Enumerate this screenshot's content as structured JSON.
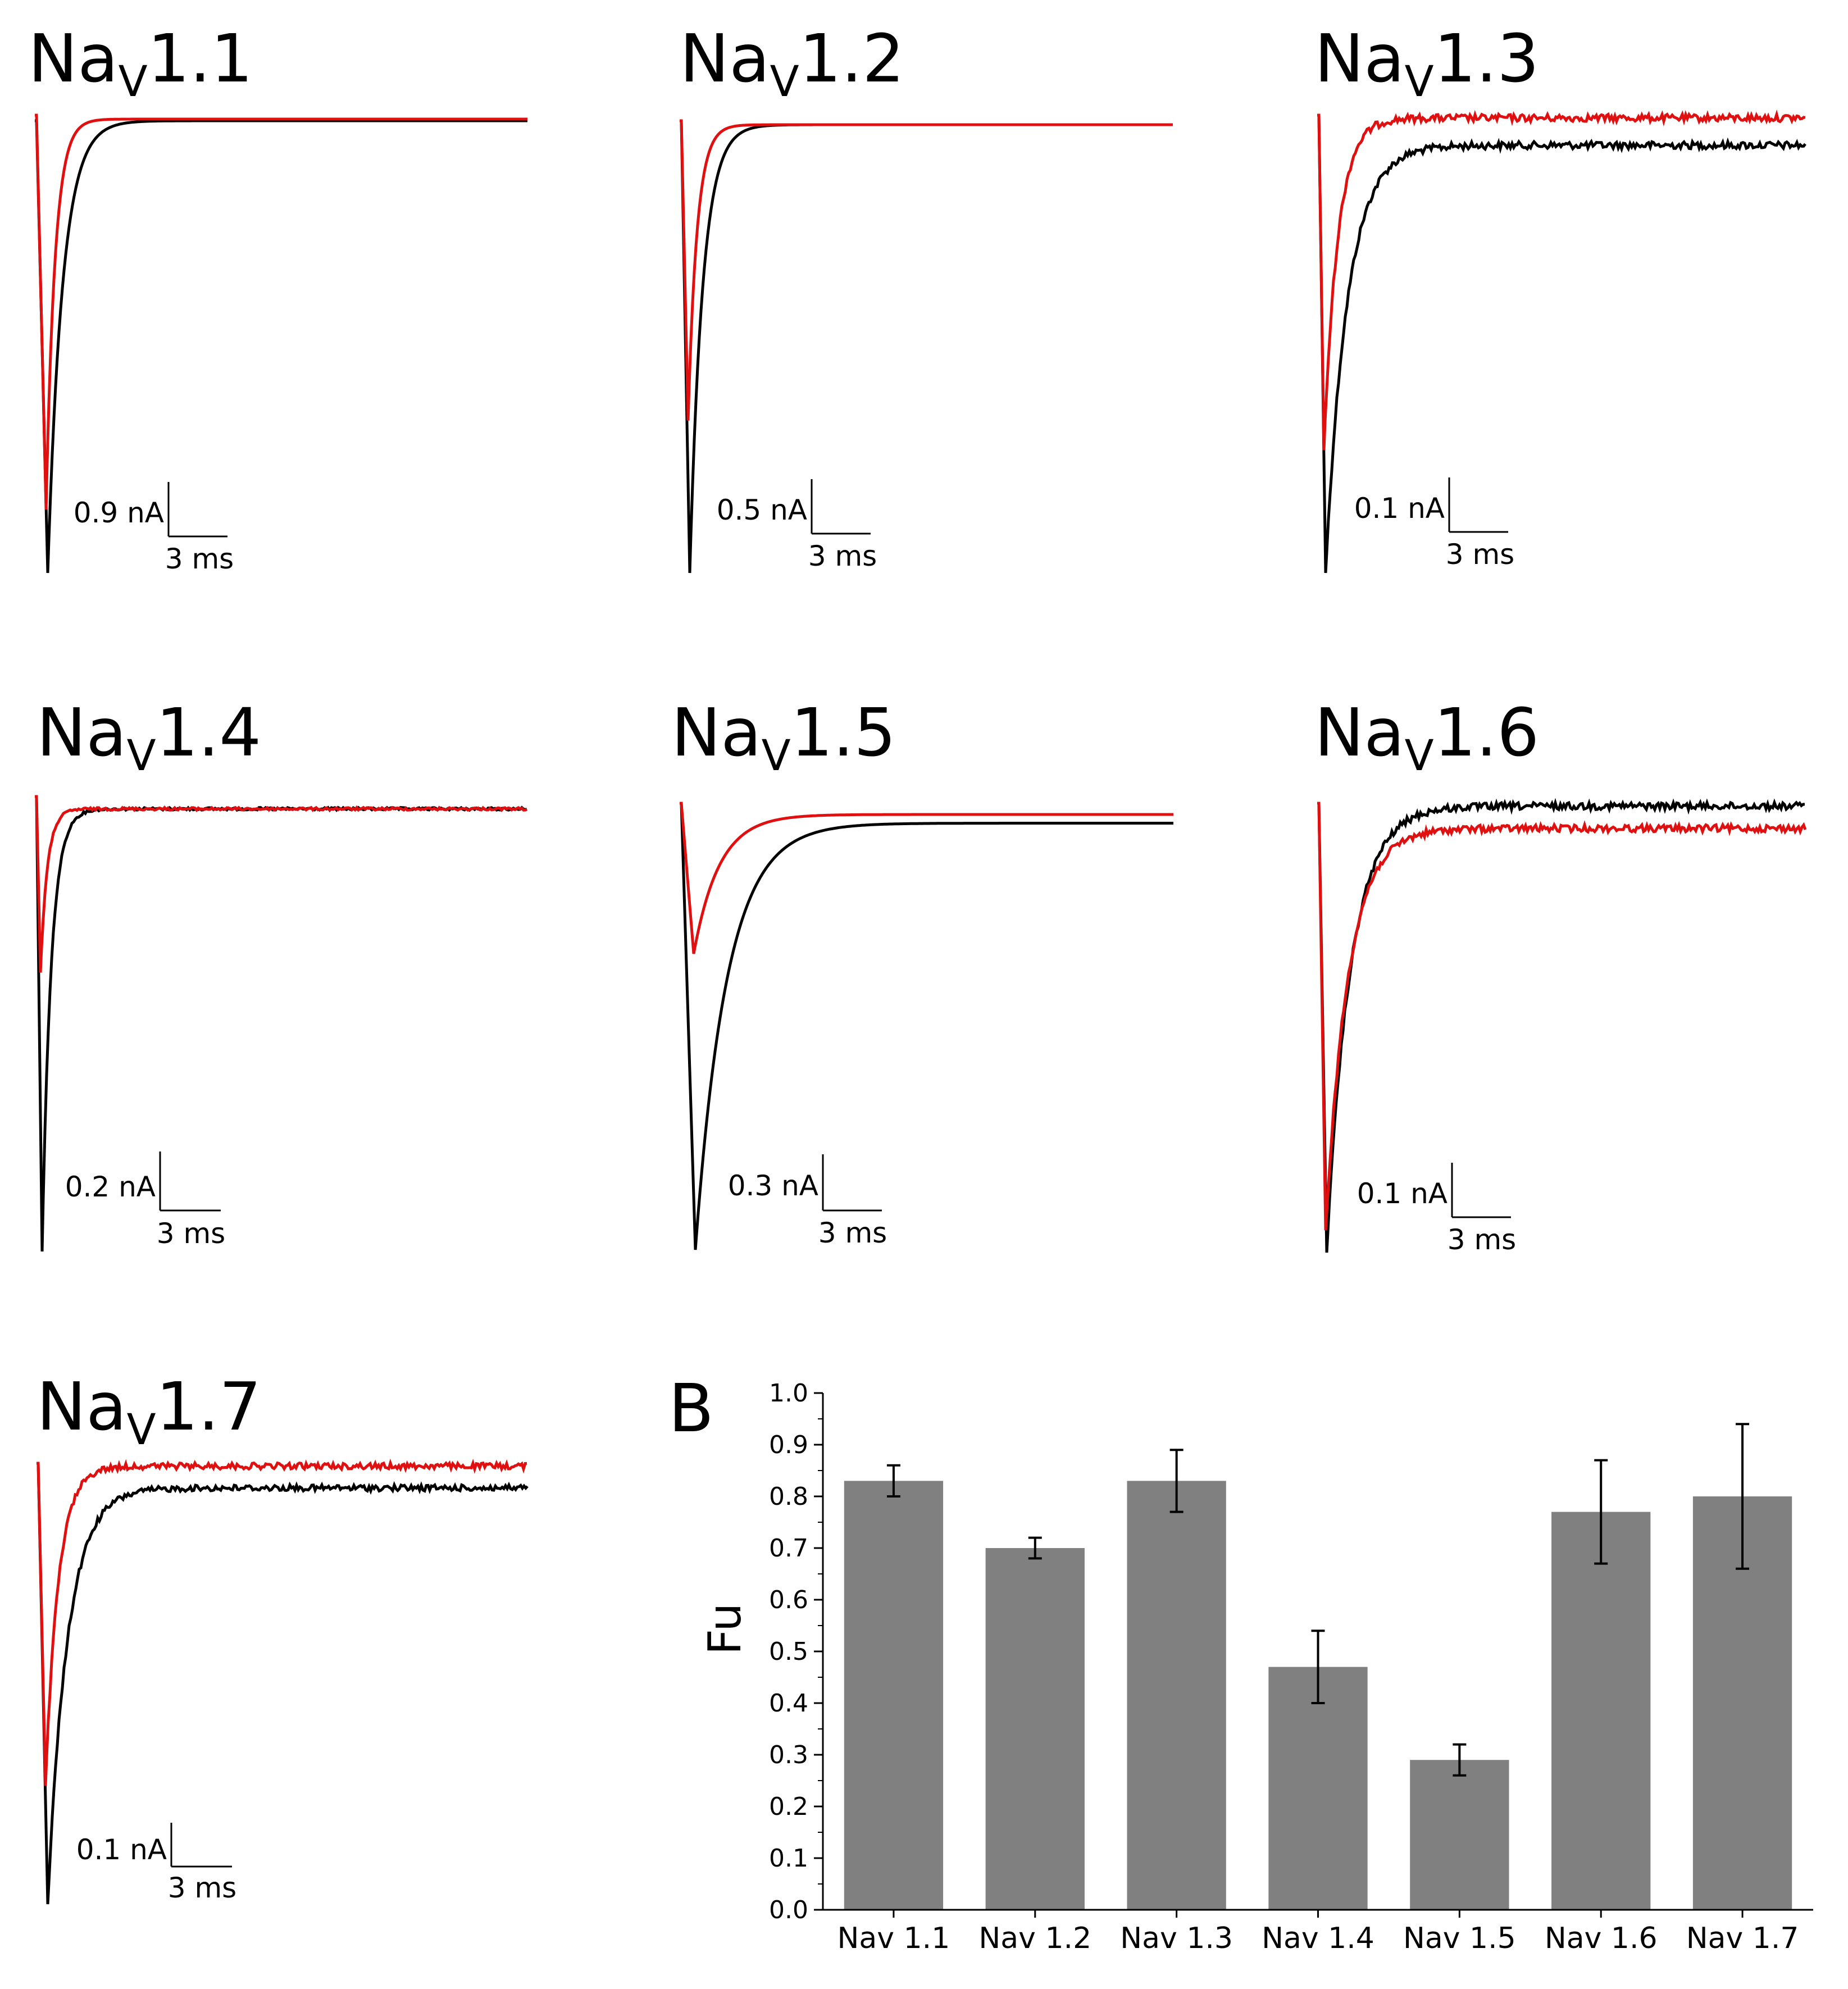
{
  "colors": {
    "control": "#000000",
    "treated": "#e01010",
    "bar": "#808080"
  },
  "panels": [
    {
      "name": "Na",
      "sub": "V",
      "num": "1.1",
      "scale_current": "0.9 nA",
      "scale_time": "3 ms",
      "black": {
        "peak": 1.0,
        "tau": 0.75,
        "plateau": 0.0,
        "noise": 0
      },
      "red": {
        "peak": 0.86,
        "tau": 0.45,
        "plateau": 0.0,
        "noise": 0
      }
    },
    {
      "name": "Na",
      "sub": "V",
      "num": "1.2",
      "scale_current": "0.5 nA",
      "scale_time": "3 ms",
      "black": {
        "peak": 1.0,
        "tau": 0.65,
        "plateau": 0.0,
        "noise": 0
      },
      "red": {
        "peak": 0.66,
        "tau": 0.45,
        "plateau": 0.0,
        "noise": 0
      }
    },
    {
      "name": "Na",
      "sub": "V",
      "num": "1.3",
      "scale_current": "0.1 nA",
      "scale_time": "3 ms",
      "black": {
        "peak": 1.0,
        "tau": 1.1,
        "plateau": 0.06,
        "noise": 0.008
      },
      "red": {
        "peak": 0.73,
        "tau": 0.7,
        "plateau": 0.0,
        "noise": 0.008
      }
    },
    {
      "name": "Na",
      "sub": "V",
      "num": "1.4",
      "scale_current": "0.2 nA",
      "scale_time": "3 ms",
      "black": {
        "peak": 1.0,
        "tau": 0.45,
        "plateau": 0.0,
        "noise": 0.003
      },
      "red": {
        "peak": 0.37,
        "tau": 0.35,
        "plateau": 0.0,
        "noise": 0.003
      }
    },
    {
      "name": "Na",
      "sub": "V",
      "num": "1.5",
      "scale_current": "0.3 nA",
      "scale_time": "3 ms",
      "black": {
        "peak": 1.0,
        "tau": 1.6,
        "plateau": 0.02,
        "noise": 0
      },
      "red": {
        "peak": 0.32,
        "tau": 1.3,
        "plateau": 0.0,
        "noise": 0
      }
    },
    {
      "name": "Na",
      "sub": "V",
      "num": "1.6",
      "scale_current": "0.1 nA",
      "scale_time": "3 ms",
      "black": {
        "peak": 1.0,
        "tau": 1.2,
        "plateau": 0.0,
        "noise": 0.008
      },
      "red": {
        "peak": 0.95,
        "tau": 1.15,
        "plateau": 0.05,
        "noise": 0.008
      }
    },
    {
      "name": "Na",
      "sub": "V",
      "num": "1.7",
      "scale_current": "0.1 nA",
      "scale_time": "3 ms",
      "black": {
        "peak": 1.0,
        "tau": 1.0,
        "plateau": 0.05,
        "noise": 0.007
      },
      "red": {
        "peak": 0.73,
        "tau": 0.65,
        "plateau": 0.0,
        "noise": 0.007
      }
    }
  ],
  "panel_b_label": "B",
  "chart_data": {
    "type": "bar",
    "title": "",
    "xlabel": "",
    "ylabel": "Fu",
    "ylim": [
      0.0,
      1.0
    ],
    "yticks": [
      "0.0",
      "0.1",
      "0.2",
      "0.3",
      "0.4",
      "0.5",
      "0.6",
      "0.7",
      "0.8",
      "0.9",
      "1.0"
    ],
    "categories": [
      "Nav 1.1",
      "Nav 1.2",
      "Nav 1.3",
      "Nav 1.4",
      "Nav 1.5",
      "Nav 1.6",
      "Nav 1.7"
    ],
    "values": [
      0.83,
      0.7,
      0.83,
      0.47,
      0.29,
      0.77,
      0.8
    ],
    "errors": [
      0.03,
      0.02,
      0.06,
      0.07,
      0.03,
      0.1,
      0.14
    ]
  }
}
